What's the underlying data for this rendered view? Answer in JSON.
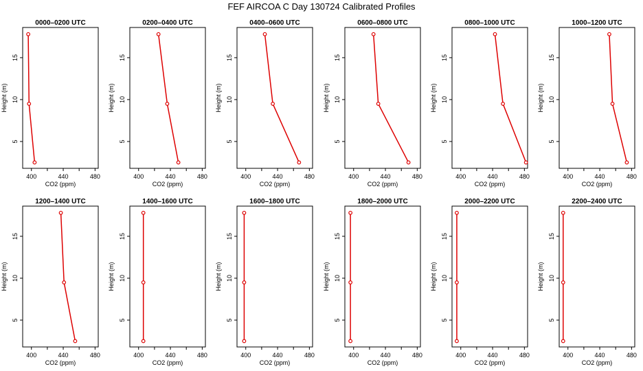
{
  "title": "FEF AIRCOA C  Day 130724  Calibrated Profiles",
  "chart_data": {
    "type": "line",
    "xlabel": "CO2 (ppm)",
    "ylabel": "Height (m)",
    "xlim": [
      389,
      484
    ],
    "ylim": [
      1.8,
      18.6
    ],
    "xticks": [
      400,
      440,
      480
    ],
    "yticks": [
      5,
      10,
      15
    ],
    "series_color": "#dd0000",
    "panels": [
      {
        "title": "0000–0200 UTC",
        "co2": [
          404,
          397,
          396
        ],
        "height": [
          2.5,
          9.5,
          17.8
        ]
      },
      {
        "title": "0200–0400 UTC",
        "co2": [
          450,
          436,
          425
        ],
        "height": [
          2.5,
          9.5,
          17.8
        ]
      },
      {
        "title": "0400–0600 UTC",
        "co2": [
          467,
          434,
          424
        ],
        "height": [
          2.5,
          9.5,
          17.8
        ]
      },
      {
        "title": "0600–0800 UTC",
        "co2": [
          469,
          431,
          425
        ],
        "height": [
          2.5,
          9.5,
          17.8
        ]
      },
      {
        "title": "0800–1000 UTC",
        "co2": [
          482,
          453,
          443
        ],
        "height": [
          2.5,
          9.5,
          17.8
        ]
      },
      {
        "title": "1000–1200 UTC",
        "co2": [
          474,
          456,
          452
        ],
        "height": [
          2.5,
          9.5,
          17.8
        ]
      },
      {
        "title": "1200–1400 UTC",
        "co2": [
          455,
          441,
          437
        ],
        "height": [
          2.5,
          9.5,
          17.8
        ]
      },
      {
        "title": "1400–1600 UTC",
        "co2": [
          406,
          406,
          406
        ],
        "height": [
          2.5,
          9.5,
          17.8
        ]
      },
      {
        "title": "1600–1800 UTC",
        "co2": [
          398,
          398,
          398
        ],
        "height": [
          2.5,
          9.5,
          17.8
        ]
      },
      {
        "title": "1800–2000 UTC",
        "co2": [
          396,
          396,
          396
        ],
        "height": [
          2.5,
          9.5,
          17.8
        ]
      },
      {
        "title": "2000–2200 UTC",
        "co2": [
          395,
          395,
          395
        ],
        "height": [
          2.5,
          9.5,
          17.8
        ]
      },
      {
        "title": "2200–2400 UTC",
        "co2": [
          394,
          394,
          394
        ],
        "height": [
          2.5,
          9.5,
          17.8
        ]
      }
    ]
  }
}
